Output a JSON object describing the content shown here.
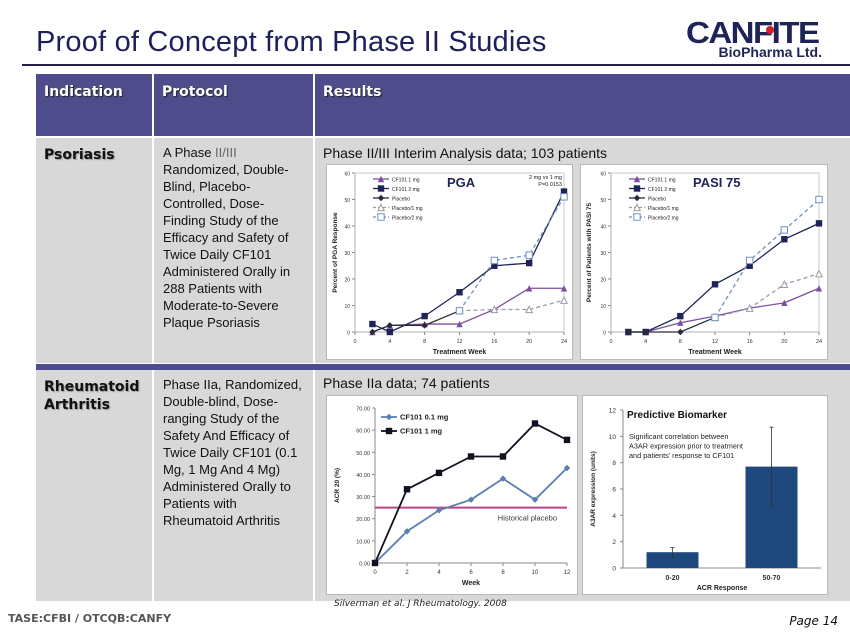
{
  "header": {
    "title": "Proof of Concept from Phase II Studies",
    "logo_main": "CANFITE",
    "logo_sub": "BioPharma Ltd."
  },
  "table": {
    "columns": [
      "Indication",
      "Protocol",
      "Results"
    ],
    "rows": [
      {
        "indication": "Psoriasis",
        "protocol_prefix": "A Phase ",
        "protocol_highlight": "II/III",
        "protocol_rest": " Randomized, Double-Blind, Placebo-Controlled, Dose-Finding Study of the Efficacy and Safety of Twice Daily CF101 Administered Orally in 288 Patients with Moderate-to-Severe Plaque Psoriasis",
        "results_title": "Phase II/III Interim Analysis data; 103 patients"
      },
      {
        "indication": "Rheumatoid Arthritis",
        "protocol_prefix": "Phase IIa, Randomized, Double-blind, Dose-ranging Study of the Safety And Efficacy of Twice Daily CF101 (0.1 Mg, 1 Mg And 4 Mg) Administered Orally to Patients with Rheumatoid Arthritis",
        "protocol_highlight": "",
        "protocol_rest": "",
        "results_title": "Phase IIa data; 74 patients"
      }
    ]
  },
  "footer": {
    "ticker": "TASE:CFBI / OTCQB:CANFY",
    "citation": "Silverman et al. J Rheumatology. 2008",
    "page": "Page 14"
  },
  "colors": {
    "header_bg": "#4e4c8b",
    "cell_bg": "#d8d8d8",
    "navy": "#1e2556",
    "purple": "#7b4f9e",
    "light_blue": "#6f9fd8",
    "steel_blue": "#5b7fb0",
    "placebo_line": "#c0408a",
    "bar": "#1f497d"
  },
  "chart_data": [
    {
      "type": "line",
      "title": "PGA",
      "annotation": "2 mg vs 1 mg P=0.0153",
      "xlabel": "Treatment Week",
      "ylabel": "Percent of PGA Response",
      "xlim": [
        0,
        24
      ],
      "ylim": [
        0,
        60
      ],
      "xticks": [
        0,
        4,
        8,
        12,
        16,
        20,
        24
      ],
      "yticks": [
        0,
        10,
        20,
        30,
        40,
        50,
        60
      ],
      "legend": "top-left",
      "series": [
        {
          "name": "CF101 1 mg",
          "x": [
            2,
            4,
            8,
            12,
            16,
            20,
            24
          ],
          "y": [
            0,
            2.5,
            3,
            3,
            8.5,
            16.5,
            16.5
          ],
          "style": "solid",
          "marker": "triangle",
          "color": "#7b4f9e"
        },
        {
          "name": "CF101 2 mg",
          "x": [
            2,
            4,
            8,
            12,
            16,
            20,
            24
          ],
          "y": [
            3,
            0,
            6,
            15,
            25,
            26,
            53
          ],
          "style": "solid",
          "marker": "square",
          "color": "#1e2556"
        },
        {
          "name": "Placebo",
          "x": [
            2,
            4,
            8,
            12
          ],
          "y": [
            0,
            2.5,
            2.5,
            8
          ],
          "style": "solid",
          "marker": "diamond",
          "color": "#2a2a3a"
        },
        {
          "name": "Placebo/1 mg",
          "x": [
            12,
            16,
            20,
            24
          ],
          "y": [
            8,
            8.5,
            8.5,
            12
          ],
          "style": "dashed",
          "marker": "open-triangle",
          "color": "#9a9aa8"
        },
        {
          "name": "Placebo/2 mg",
          "x": [
            12,
            16,
            20,
            24
          ],
          "y": [
            8,
            27,
            29,
            51
          ],
          "style": "dashed",
          "marker": "open-square",
          "color": "#6f8fbf"
        }
      ]
    },
    {
      "type": "line",
      "title": "PASI 75",
      "xlabel": "Treatment Week",
      "ylabel": "Percent of Patients with PASI 75",
      "xlim": [
        0,
        24
      ],
      "ylim": [
        0,
        60
      ],
      "xticks": [
        0,
        4,
        8,
        12,
        16,
        20,
        24
      ],
      "yticks": [
        0,
        10,
        20,
        30,
        40,
        50,
        60
      ],
      "legend": "top-left",
      "series": [
        {
          "name": "CF101 1 mg",
          "x": [
            2,
            4,
            8,
            12,
            16,
            20,
            24
          ],
          "y": [
            0,
            0,
            3.5,
            6,
            9,
            11,
            16.5
          ],
          "style": "solid",
          "marker": "triangle",
          "color": "#7b4f9e"
        },
        {
          "name": "CF101 2 mg",
          "x": [
            2,
            4,
            8,
            12,
            16,
            20,
            24
          ],
          "y": [
            0,
            0,
            6,
            18,
            25,
            35,
            41
          ],
          "style": "solid",
          "marker": "square",
          "color": "#1e2556"
        },
        {
          "name": "Placebo",
          "x": [
            2,
            4,
            8,
            12
          ],
          "y": [
            0,
            0,
            0,
            5.5
          ],
          "style": "solid",
          "marker": "diamond",
          "color": "#2a2a3a"
        },
        {
          "name": "Placebo/1 mg",
          "x": [
            12,
            16,
            20,
            24
          ],
          "y": [
            5.5,
            9,
            18,
            22
          ],
          "style": "dashed",
          "marker": "open-triangle",
          "color": "#9a9aa8"
        },
        {
          "name": "Placebo/2 mg",
          "x": [
            12,
            16,
            20,
            24
          ],
          "y": [
            5.5,
            27,
            38.5,
            50
          ],
          "style": "dashed",
          "marker": "open-square",
          "color": "#6f8fbf"
        }
      ]
    },
    {
      "type": "line",
      "title": "",
      "xlabel": "Week",
      "ylabel": "ACR 20 (%)",
      "xlim": [
        0,
        12
      ],
      "ylim": [
        0,
        70
      ],
      "xticks": [
        0,
        2,
        4,
        6,
        8,
        10,
        12
      ],
      "yticks": [
        "0.00",
        "10.00",
        "20.00",
        "30.00",
        "40.00",
        "50.00",
        "60.00",
        "70.00"
      ],
      "legend": "top-left",
      "reference_line": {
        "label": "Historical placebo",
        "y": 25,
        "color": "#c0408a"
      },
      "series": [
        {
          "name": "CF101 0.1 mg",
          "x": [
            0,
            2,
            4,
            6,
            8,
            10,
            12
          ],
          "y": [
            0,
            14.3,
            23.8,
            28.6,
            38.1,
            28.6,
            42.9
          ],
          "marker": "diamond",
          "color": "#5b7fb0"
        },
        {
          "name": "CF101 1 mg",
          "x": [
            0,
            2,
            4,
            6,
            8,
            10,
            12
          ],
          "y": [
            0,
            33.3,
            40.7,
            48.1,
            48.1,
            63,
            55.6
          ],
          "marker": "square",
          "color": "#111122"
        }
      ]
    },
    {
      "type": "bar",
      "title": "Predictive Biomarker",
      "annotation": "Significant correlation between A3AR expression prior to treatment and patients' response to CF101",
      "xlabel": "ACR Response",
      "ylabel": "A3AR expression (units)",
      "ylim": [
        0,
        12
      ],
      "yticks": [
        0,
        2,
        4,
        6,
        8,
        10,
        12
      ],
      "categories": [
        "0-20",
        "50-70"
      ],
      "values": [
        1.2,
        7.7
      ],
      "error": [
        0.35,
        3.0
      ],
      "color": "#1f497d"
    }
  ]
}
